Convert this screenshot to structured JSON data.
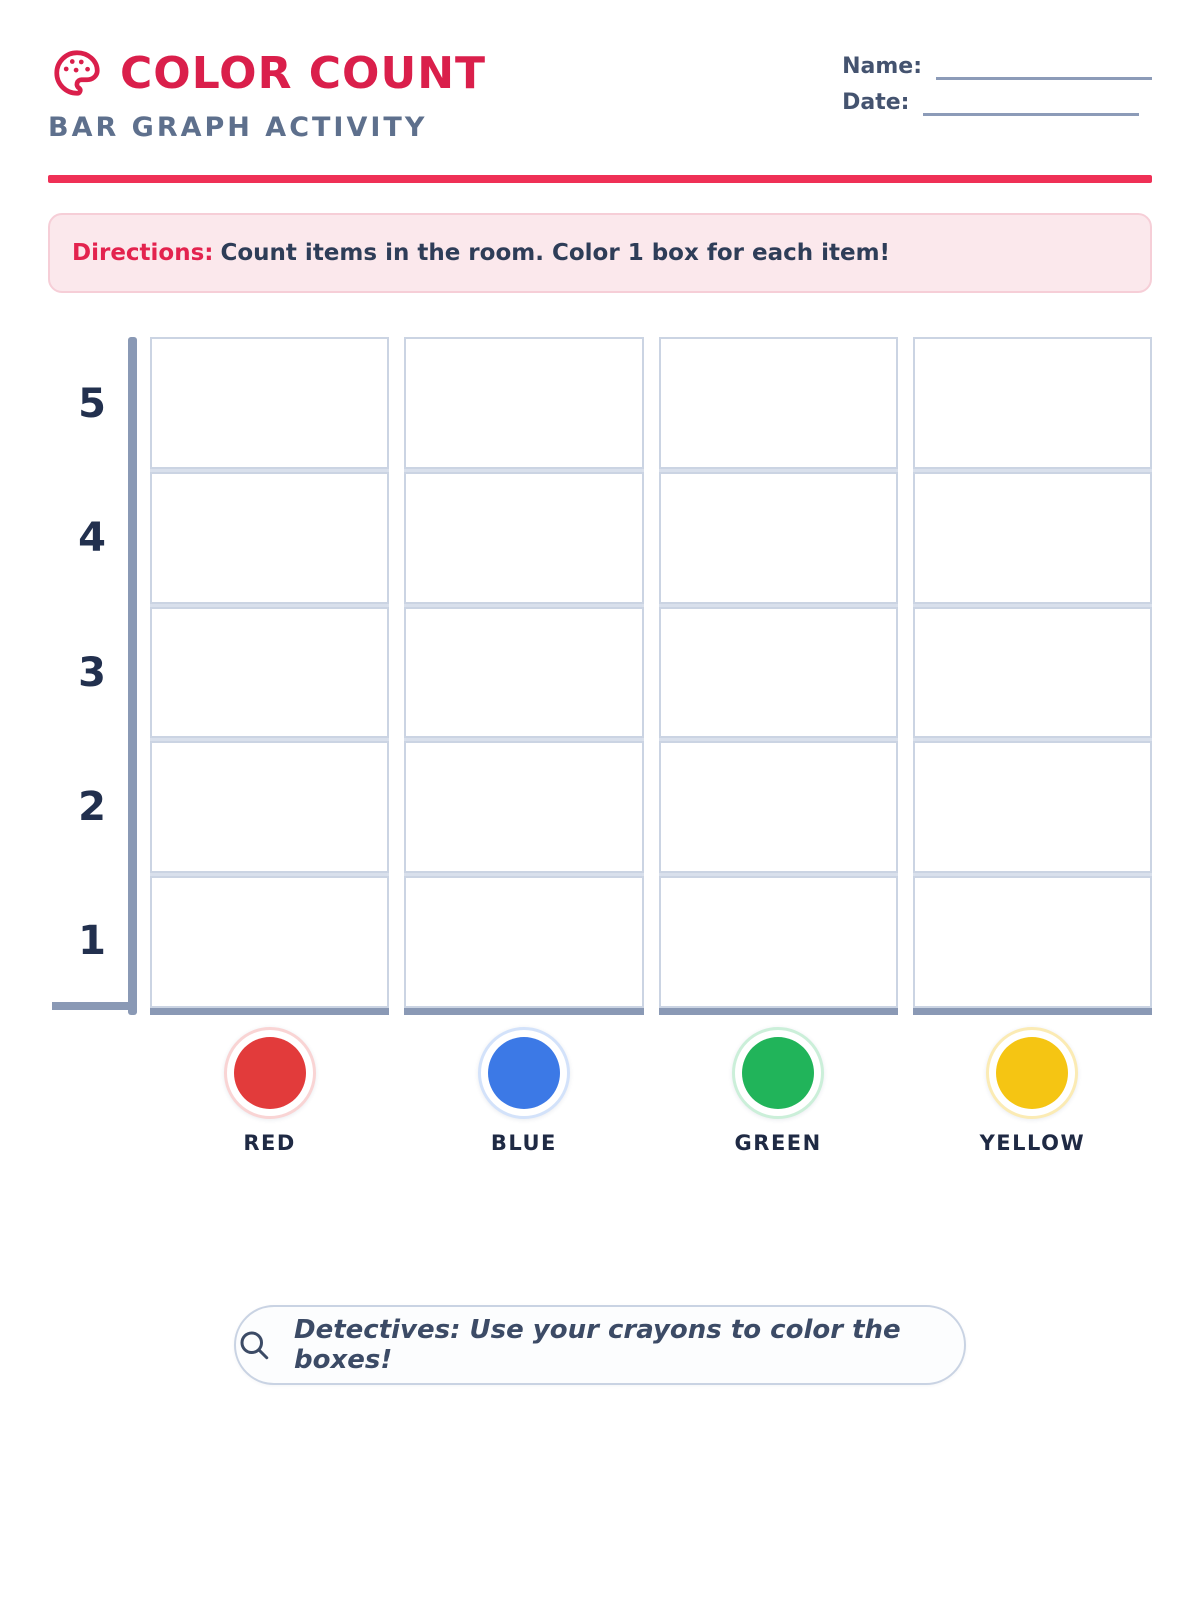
{
  "header": {
    "icon": "palette-icon",
    "title": "COLOR COUNT",
    "subtitle": "BAR GRAPH ACTIVITY",
    "name_label": "Name:",
    "date_label": "Date:"
  },
  "directions": {
    "label": "Directions:",
    "before": "Count items in the room. Color ",
    "bold_text": "1 box",
    "after": " for each item!"
  },
  "chart": {
    "rows": 5,
    "y_ticks": [
      "5",
      "4",
      "3",
      "2",
      "1"
    ],
    "columns": [
      {
        "label": "RED",
        "color": "#E23B3B",
        "ring": "#F9D4D4"
      },
      {
        "label": "BLUE",
        "color": "#3C79E6",
        "ring": "#D3E2FA"
      },
      {
        "label": "GREEN",
        "color": "#21B45A",
        "ring": "#CBEFD9"
      },
      {
        "label": "YELLOW",
        "color": "#F5C513",
        "ring": "#FBEBB4"
      }
    ]
  },
  "chart_data": {
    "type": "bar",
    "categories": [
      "RED",
      "BLUE",
      "GREEN",
      "YELLOW"
    ],
    "values": [
      null,
      null,
      null,
      null
    ],
    "ylim": [
      0,
      5
    ],
    "title": "COLOR COUNT — blank tally grid (no boxes colored yet)"
  },
  "footer": {
    "icon": "search-icon",
    "note": "Detectives: Use your crayons to color the boxes!"
  },
  "colors": {
    "accent": "#DA1F4B",
    "divider": "#EF3056",
    "axis_slate": "#8A99B5",
    "text_dark": "#22304E",
    "directions_bg": "#FBE8EC"
  }
}
